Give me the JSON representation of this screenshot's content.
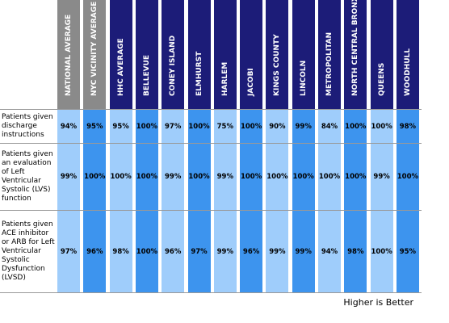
{
  "columns": [
    "NATIONAL AVERAGE",
    "NYC VICINITY AVERAGE",
    "HHC AVERAGE",
    "BELLEVUE",
    "CONEY ISLAND",
    "ELMHURST",
    "HARLEM",
    "JACOBI",
    "KINGS COUNTY",
    "LINCOLN",
    "METROPOLITAN",
    "NORTH CENTRAL BRONX",
    "QUEENS",
    "WOODHULL"
  ],
  "rows": [
    {
      "label": "Patients given discharge instructions",
      "values": [
        "94%",
        "95%",
        "95%",
        "100%",
        "97%",
        "100%",
        "75%",
        "100%",
        "90%",
        "99%",
        "84%",
        "100%",
        "100%",
        "98%"
      ]
    },
    {
      "label": "Patients given an evaluation of Left Ventricular Systolic (LVS) function",
      "values": [
        "99%",
        "100%",
        "100%",
        "100%",
        "99%",
        "100%",
        "99%",
        "100%",
        "100%",
        "100%",
        "100%",
        "100%",
        "99%",
        "100%"
      ]
    },
    {
      "label": "Patients given ACE inhibitor or ARB for Left Ventricular Systolic Dysfunction (LVSD)",
      "values": [
        "97%",
        "96%",
        "98%",
        "100%",
        "96%",
        "97%",
        "99%",
        "96%",
        "99%",
        "99%",
        "94%",
        "98%",
        "100%",
        "95%"
      ]
    }
  ],
  "footer": "Higher is Better"
}
